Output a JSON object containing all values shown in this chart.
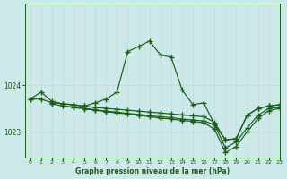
{
  "title": "Graphe pression niveau de la mer (hPa)",
  "bg_color": "#cce8e8",
  "line_color": "#1a5e1a",
  "xlim": [
    -0.5,
    23
  ],
  "ylim": [
    1022.45,
    1025.75
  ],
  "yticks": [
    1023,
    1024
  ],
  "xticks": [
    0,
    1,
    2,
    3,
    4,
    5,
    6,
    7,
    8,
    9,
    10,
    11,
    12,
    13,
    14,
    15,
    16,
    17,
    18,
    19,
    20,
    21,
    22,
    23
  ],
  "series": [
    {
      "x": [
        0,
        1,
        2,
        3,
        4,
        5,
        6,
        7,
        8,
        9,
        10,
        11,
        12,
        13,
        14,
        15,
        16,
        17,
        18,
        19,
        20,
        21,
        22,
        23
      ],
      "y": [
        1023.7,
        1023.85,
        1023.65,
        1023.6,
        1023.58,
        1023.55,
        1023.62,
        1023.7,
        1023.85,
        1024.72,
        1024.83,
        1024.95,
        1024.65,
        1024.6,
        1023.9,
        1023.58,
        1023.62,
        1023.15,
        1022.82,
        1022.85,
        1023.35,
        1023.5,
        1023.55,
        1023.58
      ]
    },
    {
      "x": [
        0,
        1,
        2,
        3,
        4,
        5,
        6,
        7,
        8,
        9,
        10,
        11,
        12,
        13,
        14,
        15,
        16,
        17,
        18,
        19,
        20,
        21,
        22,
        23
      ],
      "y": [
        1023.7,
        1023.7,
        1023.62,
        1023.6,
        1023.57,
        1023.55,
        1023.52,
        1023.5,
        1023.48,
        1023.46,
        1023.44,
        1023.42,
        1023.4,
        1023.38,
        1023.36,
        1023.34,
        1023.32,
        1023.2,
        1022.82,
        1022.85,
        1023.35,
        1023.5,
        1023.55,
        1023.58
      ]
    },
    {
      "x": [
        2,
        3,
        4,
        5,
        6,
        7,
        8,
        9,
        10,
        11,
        12,
        13,
        14,
        15,
        16,
        17,
        18,
        19,
        20,
        21,
        22,
        23
      ],
      "y": [
        1023.6,
        1023.55,
        1023.53,
        1023.5,
        1023.47,
        1023.44,
        1023.42,
        1023.39,
        1023.37,
        1023.34,
        1023.32,
        1023.3,
        1023.27,
        1023.25,
        1023.23,
        1023.15,
        1022.65,
        1022.78,
        1023.08,
        1023.35,
        1023.5,
        1023.52
      ]
    },
    {
      "x": [
        3,
        4,
        5,
        6,
        7,
        8,
        9,
        10,
        11,
        12,
        13,
        14,
        15,
        16,
        17,
        18,
        19,
        20,
        21,
        22,
        23
      ],
      "y": [
        1023.55,
        1023.52,
        1023.49,
        1023.46,
        1023.43,
        1023.4,
        1023.38,
        1023.35,
        1023.32,
        1023.29,
        1023.27,
        1023.24,
        1023.22,
        1023.19,
        1023.05,
        1022.55,
        1022.68,
        1023.0,
        1023.28,
        1023.45,
        1023.5
      ]
    }
  ]
}
